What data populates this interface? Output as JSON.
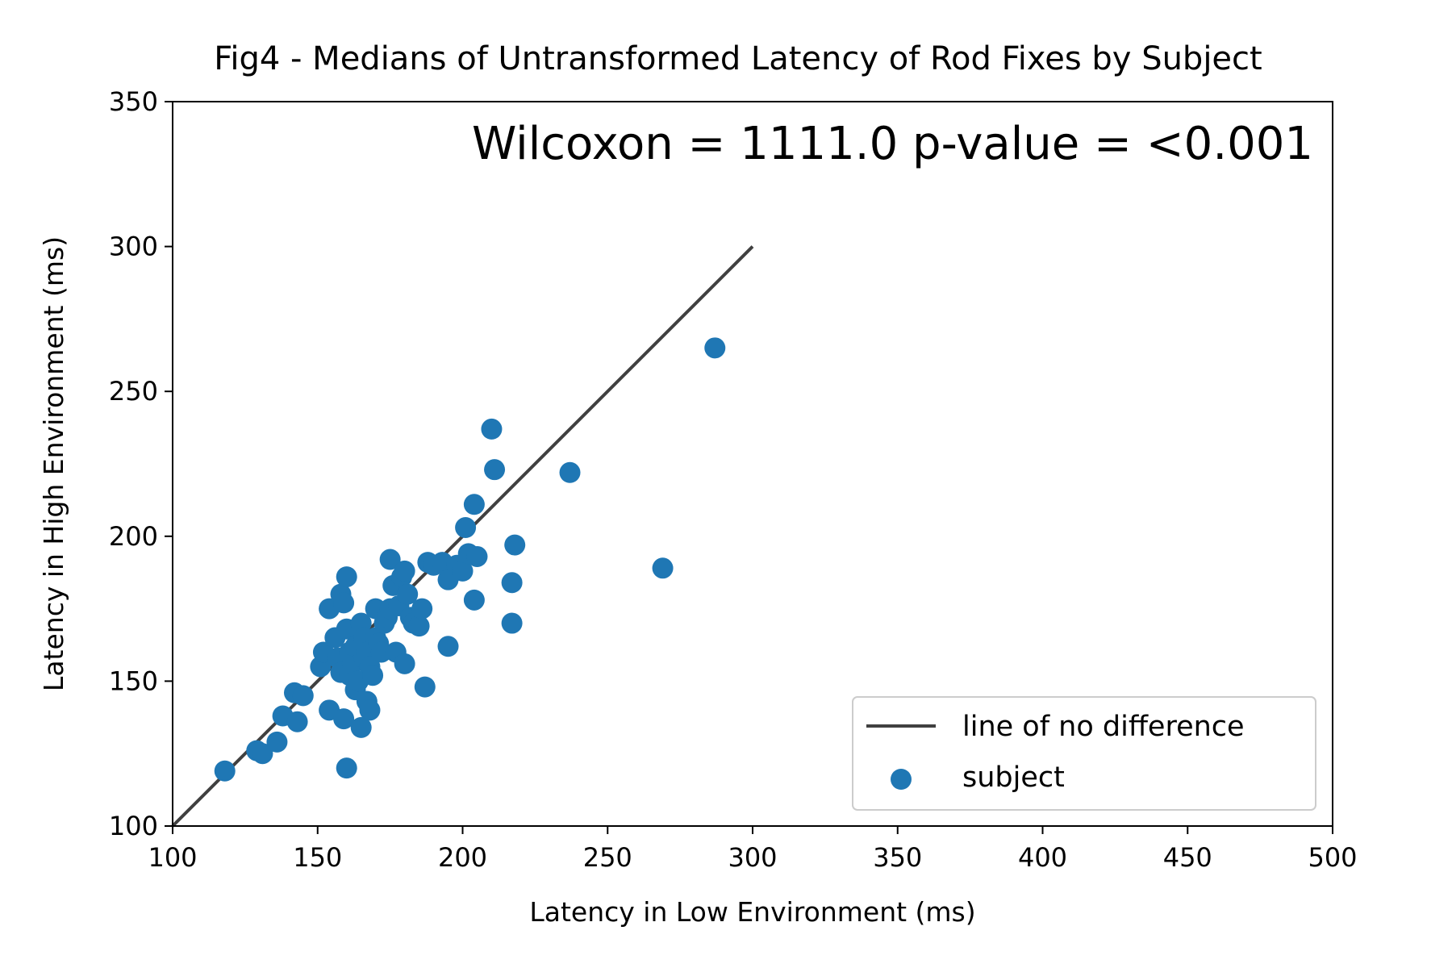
{
  "chart_data": {
    "type": "scatter",
    "title": "Fig4 - Medians of Untransformed Latency of Rod Fixes by Subject",
    "xlabel": "Latency in Low Environment (ms)",
    "ylabel": "Latency in High Environment (ms)",
    "annotation": "Wilcoxon = 1111.0  p-value = <0.001",
    "xlim": [
      100,
      500
    ],
    "ylim": [
      100,
      350
    ],
    "xticks": [
      "100",
      "150",
      "200",
      "250",
      "300",
      "350",
      "400",
      "450",
      "500"
    ],
    "yticks": [
      "100",
      "150",
      "200",
      "250",
      "300",
      "350"
    ],
    "grid": false,
    "legend_position": "lower-right",
    "colors": {
      "scatter": "#1f77b4",
      "line": "#404040",
      "axes": "#000000"
    },
    "line": {
      "name": "line of no difference",
      "x": [
        100,
        300
      ],
      "y": [
        100,
        300
      ]
    },
    "scatter": {
      "name": "subject",
      "x": [
        118,
        129,
        131,
        136,
        138,
        142,
        143,
        145,
        151,
        152,
        154,
        154,
        156,
        157,
        158,
        158,
        159,
        159,
        160,
        160,
        160,
        161,
        161,
        162,
        163,
        163,
        164,
        165,
        165,
        166,
        166,
        167,
        167,
        168,
        168,
        169,
        170,
        170,
        171,
        172,
        173,
        174,
        175,
        175,
        176,
        177,
        178,
        179,
        180,
        180,
        181,
        182,
        183,
        185,
        186,
        187,
        188,
        190,
        193,
        195,
        195,
        198,
        200,
        201,
        202,
        204,
        204,
        205,
        210,
        211,
        217,
        217,
        218,
        237,
        269,
        287
      ],
      "y": [
        119,
        126,
        125,
        129,
        138,
        146,
        136,
        145,
        155,
        160,
        140,
        175,
        165,
        158,
        180,
        153,
        137,
        177,
        186,
        120,
        168,
        160,
        152,
        156,
        162,
        147,
        150,
        134,
        170,
        158,
        165,
        143,
        160,
        155,
        140,
        152,
        175,
        165,
        163,
        160,
        170,
        172,
        192,
        175,
        183,
        160,
        176,
        186,
        188,
        156,
        180,
        172,
        170,
        169,
        175,
        148,
        191,
        190,
        191,
        185,
        162,
        190,
        188,
        203,
        194,
        211,
        178,
        193,
        237,
        223,
        184,
        170,
        197,
        222,
        189,
        265
      ]
    }
  }
}
